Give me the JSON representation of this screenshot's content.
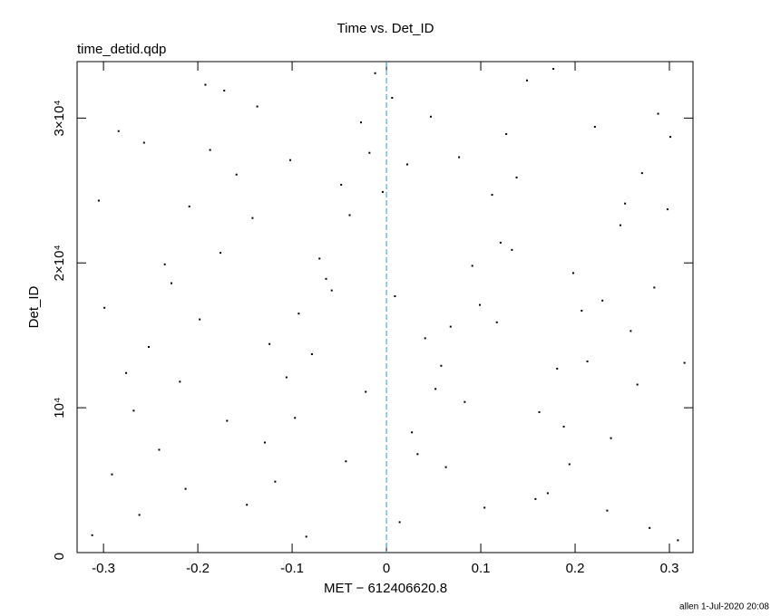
{
  "chart_data": {
    "type": "scatter",
    "title": "Time vs. Det_ID",
    "subtitle": "time_detid.qdp",
    "x_label": "MET − 612406620.8",
    "y_label": "Det_ID",
    "footer": "allen   1-Jul-2020 20:08",
    "xlim": [
      -0.328,
      0.325
    ],
    "ylim": [
      0,
      33900
    ],
    "xticks": [
      -0.3,
      -0.2,
      -0.1,
      0,
      0.1,
      0.2,
      0.3
    ],
    "yticks": [
      0,
      {
        "value": 10000,
        "label": "10⁴"
      },
      {
        "value": 20000,
        "label": "2×10⁴"
      },
      {
        "value": 30000,
        "label": "3×10⁴"
      }
    ],
    "vline": {
      "x": 0,
      "color": "#2a9fc1"
    },
    "color": "#000000",
    "x": [
      -0.312,
      -0.291,
      -0.268,
      -0.252,
      -0.228,
      -0.209,
      -0.187,
      -0.172,
      -0.148,
      -0.129,
      -0.106,
      -0.093,
      -0.071,
      -0.048,
      -0.027,
      -0.012,
      0.014,
      0.033,
      0.052,
      0.068,
      0.091,
      0.112,
      0.127,
      0.149,
      0.171,
      0.188,
      0.213,
      0.229,
      0.248,
      0.271,
      0.288,
      0.309,
      -0.305,
      -0.284,
      -0.262,
      -0.241,
      -0.219,
      -0.198,
      -0.176,
      -0.159,
      -0.137,
      -0.118,
      -0.097,
      -0.079,
      -0.058,
      -0.039,
      -0.018,
      0.006,
      0.022,
      0.041,
      0.063,
      0.083,
      0.099,
      0.121,
      0.138,
      0.158,
      0.181,
      0.198,
      0.221,
      0.238,
      0.259,
      0.279,
      0.298,
      0.316,
      -0.299,
      -0.276,
      -0.257,
      -0.235,
      -0.213,
      -0.192,
      -0.169,
      -0.142,
      -0.124,
      -0.102,
      -0.085,
      -0.064,
      -0.043,
      -0.022,
      -0.004,
      0.009,
      0.027,
      0.047,
      0.058,
      0.077,
      0.104,
      0.117,
      0.133,
      0.162,
      0.177,
      0.194,
      0.207,
      0.234,
      0.253,
      0.266,
      0.284,
      0.301
    ],
    "values": [
      1200,
      5400,
      9800,
      14200,
      18600,
      23900,
      27800,
      31900,
      3300,
      7600,
      12100,
      16500,
      20300,
      25400,
      29700,
      33100,
      2100,
      6800,
      11300,
      15600,
      19800,
      24700,
      28900,
      32600,
      4100,
      8700,
      13200,
      17400,
      22600,
      26200,
      30300,
      850,
      24300,
      29100,
      2600,
      7100,
      11800,
      16100,
      20700,
      26100,
      30800,
      4900,
      9300,
      13700,
      18100,
      23300,
      27600,
      31400,
      26800,
      14800,
      5900,
      10400,
      17100,
      21400,
      25900,
      3700,
      12700,
      19300,
      29400,
      7900,
      15300,
      1700,
      23700,
      13100,
      16900,
      12400,
      28300,
      19900,
      4400,
      32300,
      9100,
      23100,
      14400,
      27100,
      1100,
      18900,
      6300,
      11100,
      24900,
      17700,
      8300,
      30100,
      12900,
      27300,
      3100,
      15900,
      20900,
      9700,
      33400,
      6100,
      16700,
      2900,
      24100,
      11600,
      18300,
      28700
    ]
  }
}
